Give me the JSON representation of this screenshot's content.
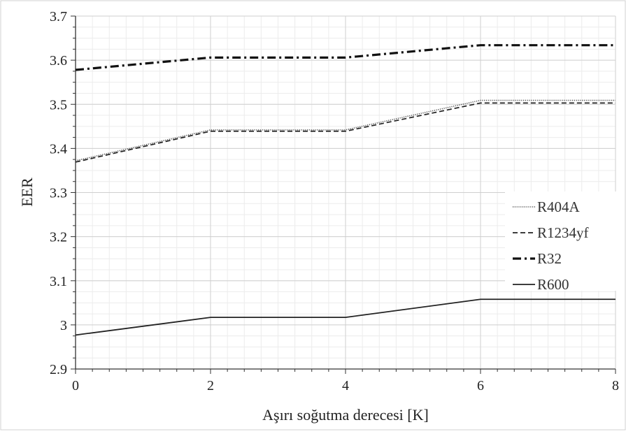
{
  "chart_data": {
    "type": "line",
    "xlabel": "Aşırı soğutma derecesi [K]",
    "ylabel": "EER",
    "xlim": [
      0,
      8
    ],
    "ylim": [
      2.9,
      3.7
    ],
    "x_ticks": [
      0,
      2,
      4,
      6,
      8
    ],
    "y_ticks": [
      2.9,
      3,
      3.1,
      3.2,
      3.3,
      3.4,
      3.5,
      3.6,
      3.7
    ],
    "x_tick_labels": [
      "0",
      "2",
      "4",
      "6",
      "8"
    ],
    "y_tick_labels": [
      "2.9",
      "3",
      "3.1",
      "3.2",
      "3.3",
      "3.4",
      "3.5",
      "3.6",
      "3.7"
    ],
    "grid": true,
    "legend_position": "right",
    "x": [
      0,
      2,
      4,
      6,
      8
    ],
    "series": [
      {
        "name": "R404A",
        "values": [
          3.372,
          3.442,
          3.442,
          3.509,
          3.509
        ],
        "style": "dotted",
        "color": "#555555"
      },
      {
        "name": "R1234yf",
        "values": [
          3.369,
          3.439,
          3.439,
          3.503,
          3.503
        ],
        "style": "dashed",
        "color": "#222222"
      },
      {
        "name": "R32",
        "values": [
          3.578,
          3.606,
          3.606,
          3.634,
          3.634
        ],
        "style": "dashdot",
        "color": "#111111"
      },
      {
        "name": "R600",
        "values": [
          2.977,
          3.017,
          3.017,
          3.058,
          3.058
        ],
        "style": "solid",
        "color": "#222222"
      }
    ]
  }
}
